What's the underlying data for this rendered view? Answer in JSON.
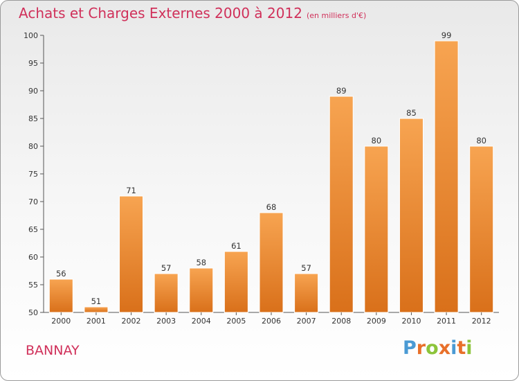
{
  "chart_data": {
    "type": "bar",
    "title": "Achats et Charges Externes 2000 à 2012",
    "subtitle": "(en milliers d'€)",
    "categories": [
      "2000",
      "2001",
      "2002",
      "2003",
      "2004",
      "2005",
      "2006",
      "2007",
      "2008",
      "2009",
      "2010",
      "2011",
      "2012"
    ],
    "values": [
      56,
      51,
      71,
      57,
      58,
      61,
      68,
      57,
      89,
      80,
      85,
      99,
      80
    ],
    "ylim": [
      50,
      100
    ],
    "yticks": [
      50,
      55,
      60,
      65,
      70,
      75,
      80,
      85,
      90,
      95,
      100
    ],
    "grid": false,
    "bar_color": "#f08a2a"
  },
  "footer": {
    "city": "BANNAY",
    "logo_letters": [
      "P",
      "r",
      "o",
      "x",
      "i",
      "t",
      "i"
    ],
    "logo_colors": [
      "#4a9ad4",
      "#e8702a",
      "#8cc43a",
      "#e8702a",
      "#4a9ad4",
      "#e8702a",
      "#8cc43a"
    ]
  }
}
